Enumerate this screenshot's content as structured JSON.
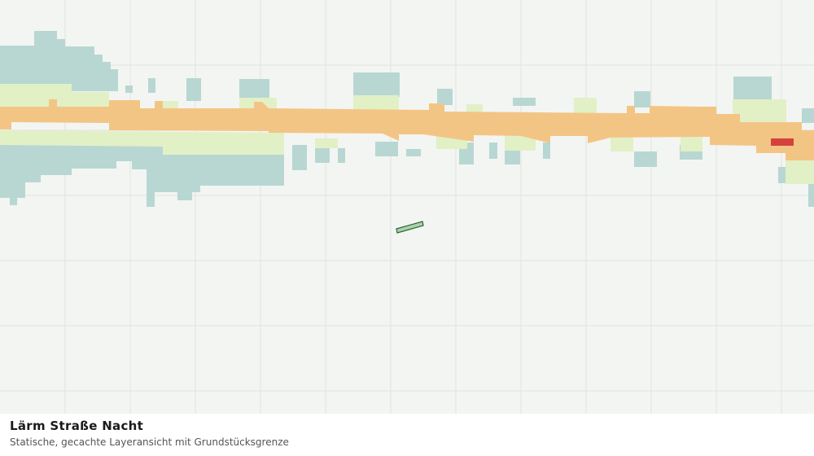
{
  "header": {
    "title": "Lärm Straße Nacht",
    "subtitle": "Statische, gecachte Layeransicht mit Grundstücksgrenze"
  }
}
